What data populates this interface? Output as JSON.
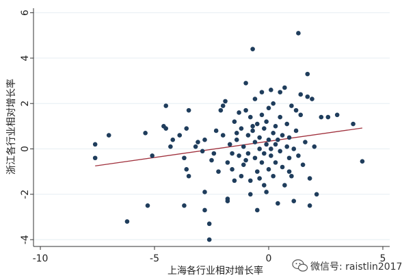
{
  "chart_data": {
    "type": "scatter",
    "xlabel": "上海各行业相对增长率",
    "ylabel": "浙江各行业相对增长率",
    "xlim": [
      -10.3,
      5.3
    ],
    "ylim": [
      -4.3,
      6.2
    ],
    "x_ticks": [
      -10,
      -5,
      0,
      5
    ],
    "y_ticks": [
      -4,
      -2,
      0,
      2,
      4,
      6
    ],
    "x_tick_labels": [
      "-10",
      "-5",
      "0",
      "5"
    ],
    "y_tick_labels": [
      "-4",
      "-2",
      "0",
      "2",
      "4",
      "6"
    ],
    "grid": "horizontal",
    "colors": {
      "points": "#1f3d5c",
      "fit_line": "#a0303c",
      "grid": "#e6eef2",
      "axis": "#333333"
    },
    "fit_line": {
      "x": [
        -7.6,
        4.1
      ],
      "y": [
        -0.75,
        0.92
      ]
    },
    "points": [
      [
        -7.6,
        0.2
      ],
      [
        -7.6,
        -0.4
      ],
      [
        -7.0,
        0.6
      ],
      [
        -6.2,
        -3.2
      ],
      [
        -5.4,
        0.7
      ],
      [
        -5.3,
        -2.5
      ],
      [
        -5.1,
        -0.3
      ],
      [
        -4.6,
        1.0
      ],
      [
        -4.5,
        0.9
      ],
      [
        -4.5,
        1.9
      ],
      [
        -4.3,
        0.1
      ],
      [
        -4.2,
        0.4
      ],
      [
        -3.9,
        0.6
      ],
      [
        -3.7,
        -0.4
      ],
      [
        -3.7,
        -2.5
      ],
      [
        -3.6,
        -0.9
      ],
      [
        -3.6,
        0.9
      ],
      [
        -3.5,
        1.7
      ],
      [
        -3.5,
        -1.2
      ],
      [
        -3.2,
        0.1
      ],
      [
        -3.1,
        0.3
      ],
      [
        -2.9,
        -0.1
      ],
      [
        -2.8,
        -1.9
      ],
      [
        -2.8,
        -2.7
      ],
      [
        -2.8,
        0.4
      ],
      [
        -2.6,
        -3.3
      ],
      [
        -2.6,
        -4.0
      ],
      [
        -2.5,
        -0.5
      ],
      [
        -2.4,
        -0.2
      ],
      [
        -2.3,
        0.8
      ],
      [
        -2.2,
        -1.0
      ],
      [
        -2.1,
        1.7
      ],
      [
        -2.0,
        1.9
      ],
      [
        -1.9,
        2.1
      ],
      [
        -1.8,
        -0.6
      ],
      [
        -1.8,
        -2.2
      ],
      [
        -1.8,
        -2.3
      ],
      [
        -1.7,
        0.2
      ],
      [
        -1.6,
        -0.9
      ],
      [
        -1.5,
        -1.4
      ],
      [
        -1.5,
        1.2
      ],
      [
        -1.4,
        0.7
      ],
      [
        -1.3,
        -0.3
      ],
      [
        -1.3,
        1.6
      ],
      [
        -1.2,
        -1.2
      ],
      [
        -1.2,
        0.9
      ],
      [
        -1.1,
        0.1
      ],
      [
        -1.1,
        -0.7
      ],
      [
        -1.0,
        2.9
      ],
      [
        -1.0,
        1.7
      ],
      [
        -0.9,
        -0.2
      ],
      [
        -0.9,
        0.6
      ],
      [
        -0.8,
        -1.4
      ],
      [
        -0.8,
        1.4
      ],
      [
        -0.8,
        -2.0
      ],
      [
        -0.7,
        0.8
      ],
      [
        -0.7,
        4.4
      ],
      [
        -0.6,
        -0.4
      ],
      [
        -0.6,
        0.3
      ],
      [
        -0.6,
        2.2
      ],
      [
        -0.5,
        -1.0
      ],
      [
        -0.5,
        1.1
      ],
      [
        -0.5,
        -2.7
      ],
      [
        -0.4,
        0.0
      ],
      [
        -0.4,
        0.5
      ],
      [
        -0.3,
        -0.6
      ],
      [
        -0.3,
        1.5
      ],
      [
        -0.3,
        2.5
      ],
      [
        -0.2,
        -0.2
      ],
      [
        -0.2,
        0.9
      ],
      [
        -0.2,
        -1.6
      ],
      [
        -0.1,
        0.2
      ],
      [
        -0.1,
        1.2
      ],
      [
        -0.1,
        -1.9
      ],
      [
        0.0,
        0.4
      ],
      [
        0.0,
        -0.9
      ],
      [
        0.0,
        1.8
      ],
      [
        0.1,
        0.0
      ],
      [
        0.1,
        2.6
      ],
      [
        0.1,
        -0.3
      ],
      [
        0.2,
        0.7
      ],
      [
        0.2,
        -1.2
      ],
      [
        0.2,
        2.0
      ],
      [
        0.3,
        0.2
      ],
      [
        0.3,
        -0.6
      ],
      [
        0.3,
        1.0
      ],
      [
        0.4,
        -2.4
      ],
      [
        0.4,
        0.4
      ],
      [
        0.5,
        -0.1
      ],
      [
        0.5,
        1.4
      ],
      [
        0.6,
        -0.8
      ],
      [
        0.6,
        0.6
      ],
      [
        0.7,
        2.7
      ],
      [
        0.7,
        -1.6
      ],
      [
        0.8,
        0.1
      ],
      [
        0.8,
        1.1
      ],
      [
        0.9,
        -0.4
      ],
      [
        0.9,
        0.5
      ],
      [
        1.0,
        -1.2
      ],
      [
        1.0,
        1.9
      ],
      [
        1.1,
        0.0
      ],
      [
        1.1,
        -2.3
      ],
      [
        1.2,
        0.8
      ],
      [
        1.3,
        5.1
      ],
      [
        1.3,
        -0.3
      ],
      [
        1.4,
        1.5
      ],
      [
        1.4,
        2.4
      ],
      [
        1.5,
        -0.7
      ],
      [
        1.6,
        0.3
      ],
      [
        1.7,
        2.3
      ],
      [
        1.7,
        3.3
      ],
      [
        1.8,
        -2.5
      ],
      [
        1.8,
        -1.3
      ],
      [
        1.9,
        2.2
      ],
      [
        2.0,
        0.1
      ],
      [
        2.1,
        -2.0
      ],
      [
        2.3,
        1.4
      ],
      [
        2.6,
        1.4
      ],
      [
        3.0,
        1.5
      ],
      [
        3.7,
        1.1
      ],
      [
        4.1,
        -0.55
      ],
      [
        -1.4,
        0.4
      ],
      [
        -1.0,
        -0.5
      ],
      [
        -0.7,
        1.0
      ],
      [
        -0.4,
        -1.3
      ],
      [
        0.5,
        2.5
      ],
      [
        0.9,
        -1.0
      ],
      [
        1.2,
        1.7
      ],
      [
        -2.0,
        0.6
      ],
      [
        -1.6,
        -0.2
      ]
    ]
  },
  "watermark": {
    "icon": "wechat-icon",
    "text": "微信号: raistlin2017"
  }
}
